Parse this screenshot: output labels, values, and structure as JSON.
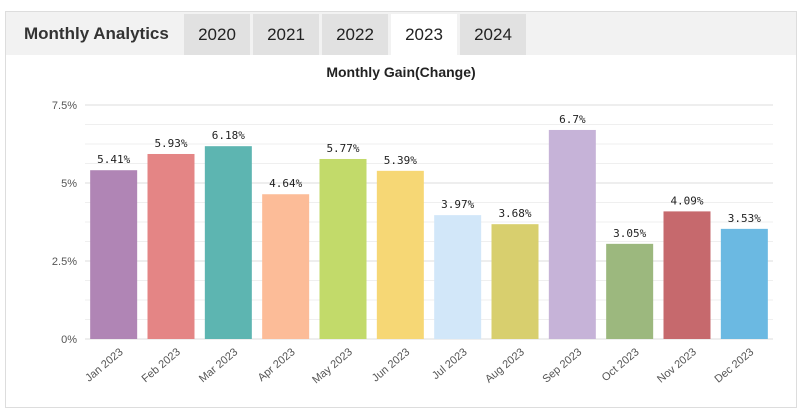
{
  "header": {
    "title": "Monthly Analytics",
    "tabs": [
      {
        "label": "2020",
        "active": false
      },
      {
        "label": "2021",
        "active": false
      },
      {
        "label": "2022",
        "active": false
      },
      {
        "label": "2023",
        "active": true
      },
      {
        "label": "2024",
        "active": false
      }
    ]
  },
  "chart_data": {
    "type": "bar",
    "title": "Monthly Gain(Change)",
    "xlabel": "",
    "ylabel": "",
    "ylim": [
      0,
      7.5
    ],
    "yticks": [
      {
        "value": 0,
        "label": "0%"
      },
      {
        "value": 2.5,
        "label": "2.5%"
      },
      {
        "value": 5,
        "label": "5%"
      },
      {
        "value": 7.5,
        "label": "7.5%"
      }
    ],
    "grid": true,
    "categories": [
      "Jan 2023",
      "Feb 2023",
      "Mar 2023",
      "Apr 2023",
      "May 2023",
      "Jun 2023",
      "Jul 2023",
      "Aug 2023",
      "Sep 2023",
      "Oct 2023",
      "Nov 2023",
      "Dec 2023"
    ],
    "values": [
      5.41,
      5.93,
      6.18,
      4.64,
      5.77,
      5.39,
      3.97,
      3.68,
      6.7,
      3.05,
      4.09,
      3.53
    ],
    "data_labels": [
      "5.41%",
      "5.93%",
      "6.18%",
      "4.64%",
      "5.77%",
      "5.39%",
      "3.97%",
      "3.68%",
      "6.7%",
      "3.05%",
      "4.09%",
      "3.53%"
    ],
    "colors": [
      "#b085b5",
      "#e48585",
      "#5db5b1",
      "#fcbc98",
      "#c2da6a",
      "#f6d775",
      "#d2e7f9",
      "#d8cf6e",
      "#c6b3d8",
      "#9cb87e",
      "#c6696d",
      "#6bb9e2"
    ]
  }
}
